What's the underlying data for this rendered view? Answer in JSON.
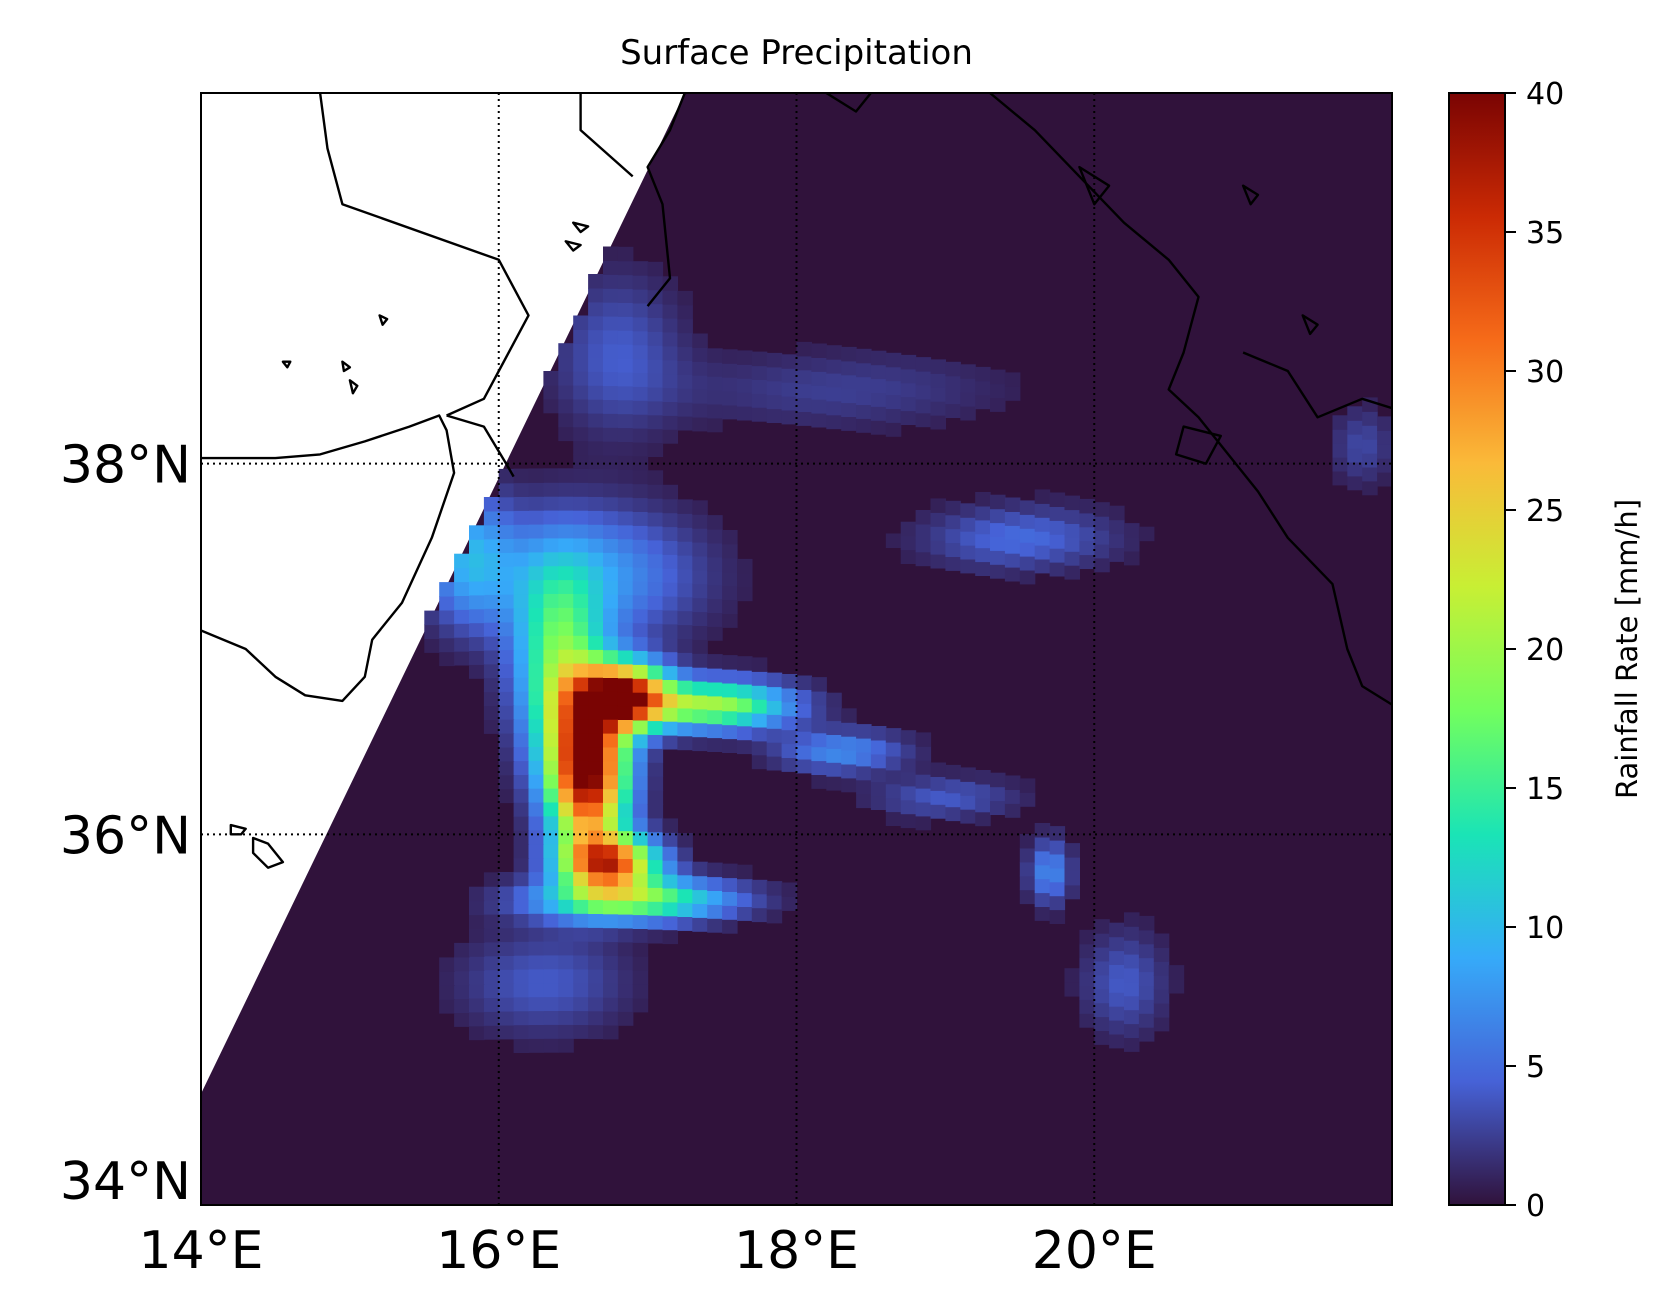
{
  "chart_data": {
    "type": "heatmap",
    "title": "Surface Precipitation",
    "projection": "map with coastlines and dotted graticule",
    "xlim": [
      14,
      22
    ],
    "ylim": [
      34,
      40
    ],
    "x_ticks": [
      {
        "value": 14,
        "label": "14°E"
      },
      {
        "value": 16,
        "label": "16°E"
      },
      {
        "value": 18,
        "label": "18°E"
      },
      {
        "value": 20,
        "label": "20°E"
      }
    ],
    "y_ticks": [
      {
        "value": 34,
        "label": "34°N"
      },
      {
        "value": 36,
        "label": "36°N"
      },
      {
        "value": 38,
        "label": "38°N"
      }
    ],
    "gridlines": {
      "lon": [
        16,
        18,
        20
      ],
      "lat": [
        36,
        38
      ],
      "style": "dotted"
    },
    "swath_edge": [
      [
        14.0,
        34.6
      ],
      [
        17.25,
        40.0
      ]
    ],
    "colorbar": {
      "label": "Rainfall Rate [mm/h]",
      "cmap": "turbo",
      "range": [
        0,
        40
      ],
      "ticks": [
        0,
        5,
        10,
        15,
        20,
        25,
        30,
        35,
        40
      ],
      "stops": [
        "#30123b",
        "#4662d7",
        "#36aaf9",
        "#1ae4b6",
        "#72fe5e",
        "#c8ef34",
        "#faba39",
        "#f66b19",
        "#cb2a04",
        "#7a0403"
      ]
    },
    "background_color": "#30123b",
    "rain_features": [
      {
        "name": "core",
        "lon": 16.6,
        "lat": 36.35,
        "peak_mm_h": 40,
        "sigma_lon": 0.18,
        "sigma_lat": 0.3
      },
      {
        "name": "core-north",
        "lon": 16.85,
        "lat": 36.75,
        "peak_mm_h": 36,
        "sigma_lon": 0.2,
        "sigma_lat": 0.12
      },
      {
        "name": "core-south",
        "lon": 16.75,
        "lat": 35.85,
        "peak_mm_h": 30,
        "sigma_lon": 0.22,
        "sigma_lat": 0.1
      },
      {
        "name": "arm-east",
        "lon": 17.45,
        "lat": 36.7,
        "peak_mm_h": 20,
        "sigma_lon": 0.35,
        "sigma_lat": 0.09
      },
      {
        "name": "south-band",
        "lon": 16.9,
        "lat": 35.65,
        "peak_mm_h": 18,
        "sigma_lon": 0.45,
        "sigma_lat": 0.08
      },
      {
        "name": "west-band",
        "lon": 16.4,
        "lat": 36.9,
        "peak_mm_h": 16,
        "sigma_lon": 0.2,
        "sigma_lat": 0.35
      },
      {
        "name": "north-arc",
        "lon": 16.6,
        "lat": 37.4,
        "peak_mm_h": 8,
        "sigma_lon": 0.5,
        "sigma_lat": 0.25
      },
      {
        "name": "coast-edge",
        "lon": 15.8,
        "lat": 37.5,
        "peak_mm_h": 8,
        "sigma_lon": 0.2,
        "sigma_lat": 0.25
      },
      {
        "name": "south-outer",
        "lon": 16.3,
        "lat": 35.2,
        "peak_mm_h": 4,
        "sigma_lon": 0.4,
        "sigma_lat": 0.2
      },
      {
        "name": "arc-east-1",
        "lon": 18.3,
        "lat": 36.45,
        "peak_mm_h": 7,
        "sigma_lon": 0.3,
        "sigma_lat": 0.08
      },
      {
        "name": "arc-east-2",
        "lon": 19.0,
        "lat": 36.2,
        "peak_mm_h": 4,
        "sigma_lon": 0.35,
        "sigma_lat": 0.08
      },
      {
        "name": "east-blob",
        "lon": 19.7,
        "lat": 35.8,
        "peak_mm_h": 7,
        "sigma_lon": 0.1,
        "sigma_lat": 0.12
      },
      {
        "name": "east-tail",
        "lon": 20.2,
        "lat": 35.2,
        "peak_mm_h": 4,
        "sigma_lon": 0.2,
        "sigma_lat": 0.2
      },
      {
        "name": "ne-patch",
        "lon": 19.5,
        "lat": 37.6,
        "peak_mm_h": 5,
        "sigma_lon": 0.45,
        "sigma_lat": 0.12
      },
      {
        "name": "n-arc",
        "lon": 18.3,
        "lat": 38.4,
        "peak_mm_h": 2.5,
        "sigma_lon": 0.8,
        "sigma_lat": 0.15
      },
      {
        "name": "nw-patch",
        "lon": 16.8,
        "lat": 38.6,
        "peak_mm_h": 4,
        "sigma_lon": 0.3,
        "sigma_lat": 0.3
      },
      {
        "name": "far-east",
        "lon": 21.8,
        "lat": 38.1,
        "peak_mm_h": 3,
        "sigma_lon": 0.15,
        "sigma_lat": 0.15
      }
    ],
    "coastlines": [
      [
        [
          14.0,
          38.03
        ],
        [
          14.5,
          38.03
        ],
        [
          14.8,
          38.05
        ],
        [
          15.1,
          38.12
        ],
        [
          15.4,
          38.2
        ],
        [
          15.6,
          38.26
        ],
        [
          15.65,
          38.18
        ],
        [
          15.7,
          37.95
        ],
        [
          15.55,
          37.6
        ],
        [
          15.35,
          37.25
        ],
        [
          15.15,
          37.05
        ],
        [
          15.1,
          36.85
        ],
        [
          14.95,
          36.72
        ],
        [
          14.7,
          36.75
        ],
        [
          14.5,
          36.85
        ],
        [
          14.3,
          37.0
        ],
        [
          14.0,
          37.1
        ]
      ],
      [
        [
          15.65,
          38.26
        ],
        [
          15.9,
          38.2
        ],
        [
          16.05,
          38.0
        ],
        [
          16.1,
          37.93
        ]
      ],
      [
        [
          14.8,
          40.0
        ],
        [
          14.85,
          39.7
        ],
        [
          14.95,
          39.4
        ],
        [
          16.0,
          39.1
        ],
        [
          16.2,
          38.8
        ],
        [
          16.0,
          38.5
        ],
        [
          15.9,
          38.35
        ],
        [
          15.65,
          38.26
        ]
      ],
      [
        [
          17.0,
          38.85
        ],
        [
          17.15,
          39.0
        ],
        [
          17.1,
          39.4
        ],
        [
          17.0,
          39.6
        ],
        [
          17.15,
          39.8
        ],
        [
          17.25,
          40.0
        ]
      ],
      [
        [
          16.55,
          40.0
        ],
        [
          16.55,
          39.8
        ],
        [
          16.9,
          39.55
        ]
      ],
      [
        [
          18.2,
          40.0
        ],
        [
          18.4,
          39.9
        ],
        [
          18.5,
          40.0
        ]
      ],
      [
        [
          19.3,
          40.0
        ],
        [
          19.6,
          39.8
        ],
        [
          19.9,
          39.55
        ],
        [
          20.2,
          39.3
        ],
        [
          20.5,
          39.1
        ],
        [
          20.7,
          38.9
        ],
        [
          20.6,
          38.6
        ],
        [
          20.5,
          38.4
        ],
        [
          20.7,
          38.25
        ],
        [
          21.1,
          37.85
        ],
        [
          21.3,
          37.6
        ],
        [
          21.6,
          37.35
        ],
        [
          21.7,
          37.0
        ],
        [
          21.8,
          36.8
        ],
        [
          22.0,
          36.7
        ]
      ],
      [
        [
          22.0,
          38.3
        ],
        [
          21.8,
          38.35
        ],
        [
          21.5,
          38.25
        ],
        [
          21.3,
          38.5
        ],
        [
          21.0,
          38.6
        ]
      ]
    ],
    "islands": [
      [
        [
          14.35,
          35.98
        ],
        [
          14.45,
          35.95
        ],
        [
          14.55,
          35.85
        ],
        [
          14.45,
          35.82
        ],
        [
          14.35,
          35.9
        ]
      ],
      [
        [
          14.2,
          36.05
        ],
        [
          14.3,
          36.03
        ],
        [
          14.27,
          36.0
        ],
        [
          14.2,
          36.0
        ]
      ],
      [
        [
          20.6,
          38.2
        ],
        [
          20.85,
          38.15
        ],
        [
          20.75,
          38.0
        ],
        [
          20.55,
          38.05
        ]
      ],
      [
        [
          19.9,
          39.6
        ],
        [
          20.1,
          39.5
        ],
        [
          20.0,
          39.4
        ]
      ],
      [
        [
          15.2,
          38.8
        ],
        [
          15.25,
          38.78
        ],
        [
          15.22,
          38.75
        ]
      ],
      [
        [
          14.95,
          38.55
        ],
        [
          15.0,
          38.52
        ],
        [
          14.96,
          38.5
        ]
      ],
      [
        [
          15.0,
          38.45
        ],
        [
          15.05,
          38.42
        ],
        [
          15.02,
          38.38
        ]
      ],
      [
        [
          14.55,
          38.55
        ],
        [
          14.6,
          38.55
        ],
        [
          14.58,
          38.52
        ]
      ],
      [
        [
          16.5,
          39.3
        ],
        [
          16.6,
          39.28
        ],
        [
          16.55,
          39.25
        ]
      ],
      [
        [
          16.45,
          39.2
        ],
        [
          16.55,
          39.18
        ],
        [
          16.5,
          39.15
        ]
      ],
      [
        [
          21.0,
          39.5
        ],
        [
          21.1,
          39.45
        ],
        [
          21.05,
          39.4
        ]
      ],
      [
        [
          21.4,
          38.8
        ],
        [
          21.5,
          38.75
        ],
        [
          21.45,
          38.7
        ]
      ]
    ]
  }
}
